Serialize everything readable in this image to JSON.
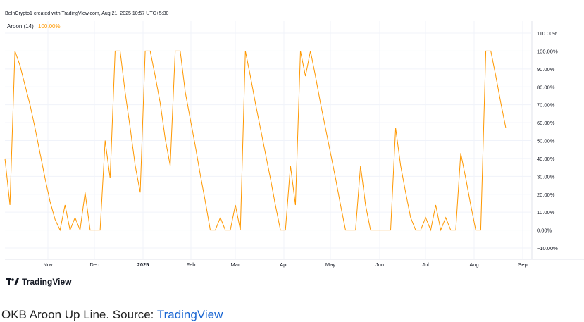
{
  "header": {
    "created_by": "BeInCrypto1 created with TradingView.com, Aug 21, 2025 10:57 UTC+5:30"
  },
  "legend": {
    "indicator": "Aroon (14)",
    "value": "100.00%"
  },
  "brand": {
    "name": "TradingView"
  },
  "caption": {
    "text": "OKB Aroon Up Line. Source: ",
    "link": "TradingView"
  },
  "colors": {
    "line": "#ff9800",
    "grid": "#f0f3fa",
    "caption_link": "#1a66d2"
  },
  "chart_data": {
    "type": "line",
    "title": "",
    "series": [
      {
        "name": "",
        "x": [
          0,
          4,
          8,
          12,
          16,
          20,
          24,
          28,
          32,
          36,
          40,
          44,
          48,
          52,
          56,
          60,
          64,
          68,
          72,
          76,
          80,
          84,
          88,
          92,
          96,
          100,
          104,
          108,
          112,
          116,
          120,
          124,
          128,
          132,
          136,
          140,
          144,
          148,
          152,
          156,
          160,
          164,
          168,
          172,
          176,
          180,
          184,
          188,
          192,
          196,
          200,
          204,
          208,
          212,
          216,
          220,
          224,
          228,
          232,
          236,
          240,
          244,
          248,
          252,
          256,
          260,
          264,
          268,
          272,
          276,
          280,
          284,
          288,
          292,
          296,
          300,
          304,
          308,
          312,
          316,
          320,
          324,
          328,
          332,
          336,
          340,
          344,
          348,
          352,
          356,
          360,
          364,
          368,
          372,
          376,
          380,
          384,
          388,
          392,
          396,
          400
        ],
        "values": [
          40,
          14,
          100,
          92,
          81,
          70,
          57,
          43,
          29,
          16,
          6,
          0,
          14,
          0,
          7,
          0,
          21,
          0,
          0,
          0,
          50,
          29,
          100,
          100,
          77,
          57,
          36,
          21,
          100,
          100,
          86,
          71,
          51,
          36,
          100,
          100,
          77,
          62,
          47,
          31,
          16,
          0,
          0,
          7,
          0,
          0,
          14,
          0,
          100,
          86,
          71,
          57,
          43,
          29,
          14,
          0,
          0,
          36,
          14,
          100,
          86,
          100,
          86,
          71,
          57,
          43,
          29,
          14,
          0,
          0,
          0,
          36,
          14,
          0,
          0,
          0,
          0,
          0,
          57,
          36,
          21,
          7,
          0,
          0,
          7,
          0,
          14,
          0,
          7,
          0,
          0,
          43,
          29,
          14,
          0,
          0,
          100,
          100,
          86,
          71,
          57
        ]
      }
    ],
    "x_tick_labels": [
      "Nov",
      "Dec",
      "2025",
      "Feb",
      "Mar",
      "Apr",
      "May",
      "Jun",
      "Jul",
      "Aug",
      "Sep"
    ],
    "y_tick_labels": [
      "110.00%",
      "100.00%",
      "90.00%",
      "80.00%",
      "70.00%",
      "60.00%",
      "50.00%",
      "40.00%",
      "30.00%",
      "20.00%",
      "10.00%",
      "0.00%",
      "−10.00%"
    ],
    "ylim": [
      -10,
      110
    ],
    "grid": true
  }
}
